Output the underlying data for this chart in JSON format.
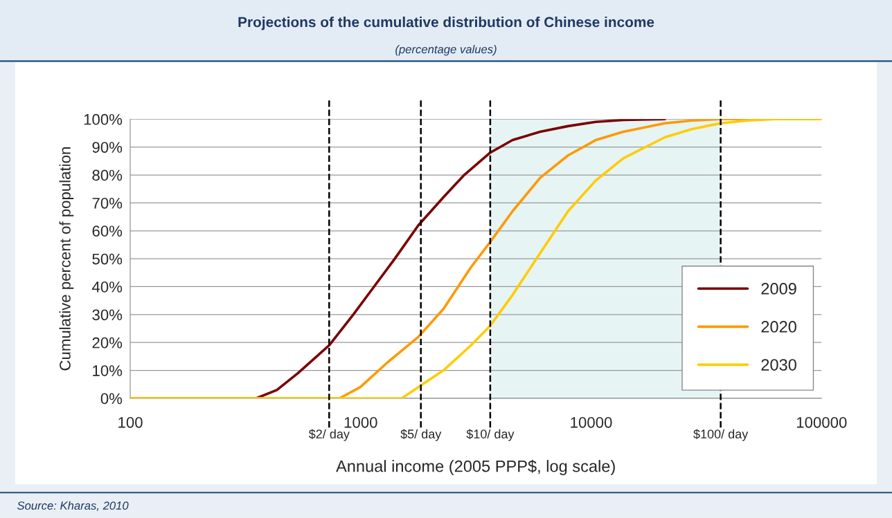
{
  "chart_data": {
    "type": "line",
    "title": "Projections of the cumulative distribution of Chinese income",
    "subtitle": "(percentage values)",
    "xlabel": "Annual income (2005 PPP$, log scale)",
    "ylabel": "Cumulative percent of population",
    "log": "x",
    "xlim": [
      100,
      100000
    ],
    "xticks": [
      100,
      1000,
      10000,
      100000
    ],
    "ylim": [
      0,
      100
    ],
    "yticks": [
      {
        "value": 0,
        "label": "0%"
      },
      {
        "value": 10,
        "label": "10%"
      },
      {
        "value": 20,
        "label": "20%"
      },
      {
        "value": 30,
        "label": "30%"
      },
      {
        "value": 40,
        "label": "40%"
      },
      {
        "value": 50,
        "label": "50%"
      },
      {
        "value": 60,
        "label": "60%"
      },
      {
        "value": 70,
        "label": "70%"
      },
      {
        "value": 80,
        "label": "80%"
      },
      {
        "value": 90,
        "label": "90%"
      },
      {
        "value": 100,
        "label": "100%"
      }
    ],
    "grid": "y",
    "legend": "lower right",
    "marker": "none",
    "line_style": "solid",
    "series": [
      {
        "name": "2009",
        "color": "#7b0000",
        "x": [
          100,
          352,
          433,
          534,
          730,
          929,
          1143,
          1406,
          1780,
          2286,
          2813,
          3650,
          4560,
          6010,
          7940,
          10470,
          13800,
          20900
        ],
        "values": [
          0,
          0,
          3,
          9,
          19,
          30,
          40,
          50,
          62,
          72,
          80,
          88,
          92.5,
          95.5,
          97.5,
          99,
          99.7,
          100
        ]
      },
      {
        "name": "2020",
        "color": "#ff9900",
        "x": [
          100,
          809,
          995,
          1313,
          1780,
          2286,
          3013,
          3650,
          4560,
          6010,
          7940,
          10470,
          13800,
          20900,
          27500,
          36400,
          100000
        ],
        "values": [
          0,
          0,
          4,
          13,
          22,
          32,
          47,
          56,
          67,
          79,
          87,
          92.5,
          95.5,
          98.5,
          99.5,
          100,
          100
        ]
      },
      {
        "name": "2030",
        "color": "#ffcc00",
        "x": [
          100,
          1506,
          1780,
          2286,
          3013,
          3650,
          4560,
          6010,
          7940,
          10470,
          13800,
          20900,
          27500,
          36500,
          47900,
          63100,
          100000
        ],
        "values": [
          0,
          0,
          4,
          10,
          19,
          26,
          37,
          52,
          67,
          78,
          86,
          93.5,
          96.5,
          98.5,
          99.5,
          100,
          100
        ]
      }
    ],
    "ref_lines": [
      {
        "axis": "x",
        "value": 730,
        "label": "$2/ day",
        "line_style": "dashed",
        "color": "#000000"
      },
      {
        "axis": "x",
        "value": 1825,
        "label": "$5/ day",
        "line_style": "dashed",
        "color": "#000000"
      },
      {
        "axis": "x",
        "value": 3650,
        "label": "$10/ day",
        "line_style": "dashed",
        "color": "#000000"
      },
      {
        "axis": "x",
        "value": 36500,
        "label": "$100/ day",
        "line_style": "dashed",
        "color": "#000000"
      }
    ],
    "bands": [
      {
        "axis": "x",
        "from": 3650,
        "to": 36500,
        "color": "#e6f4f4"
      }
    ],
    "annotations": [
      "Source: Kharas, 2010"
    ]
  }
}
